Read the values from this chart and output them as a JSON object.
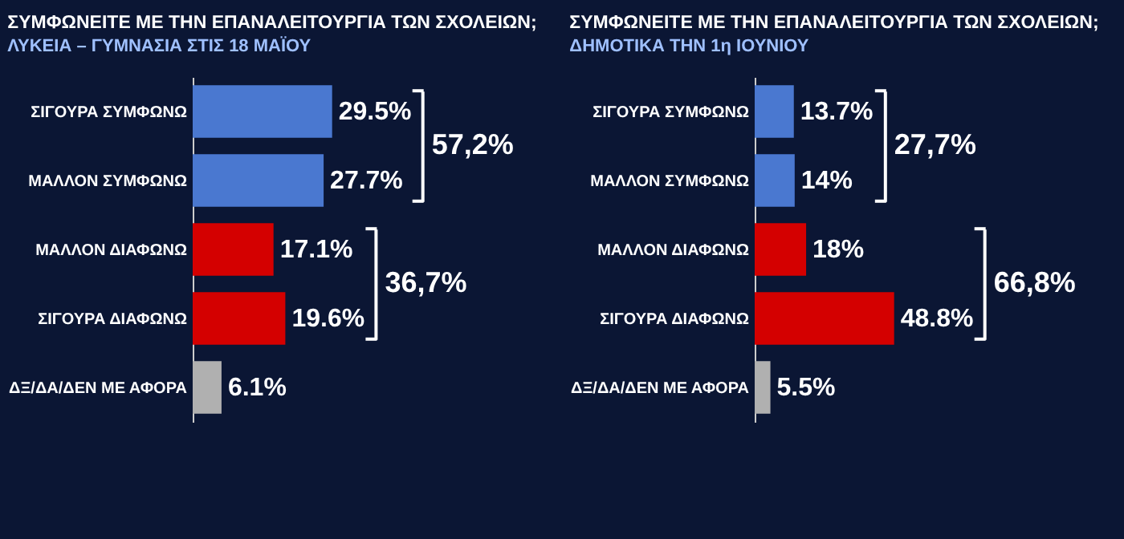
{
  "chart_data": [
    {
      "type": "bar",
      "orientation": "horizontal",
      "title": "ΣΥΜΦΩΝΕΙΤΕ ΜΕ ΤΗΝ ΕΠΑΝΑΛΕΙΤΟΥΡΓΙΑ ΤΩΝ ΣΧΟΛΕΙΩΝ;",
      "subtitle": "ΛΥΚΕΙΑ – ΓΥΜΝΑΣΙΑ ΣΤΙΣ 18 ΜΑΪΟΥ",
      "tick_labels": "y",
      "categories": [
        "ΣΙΓΟΥΡΑ ΣΥΜΦΩΝΩ",
        "ΜΑΛΛΟΝ ΣΥΜΦΩΝΩ",
        "ΜΑΛΛΟΝ ΔΙΑΦΩΝΩ",
        "ΣΙΓΟΥΡΑ ΔΙΑΦΩΝΩ",
        "ΔΞ/ΔΑ/ΔΕΝ ΜΕ ΑΦΟΡΑ"
      ],
      "values": [
        29.5,
        27.7,
        17.1,
        19.6,
        6.1
      ],
      "colors": [
        "#4a78d0",
        "#4a78d0",
        "#d40000",
        "#d40000",
        "#b0b0b0"
      ],
      "value_labels": [
        "29.5%",
        "27.7%",
        "17.1%",
        "19.6%",
        "6.1%"
      ],
      "annotations": [
        "57,2%",
        "36,7%"
      ]
    },
    {
      "type": "bar",
      "orientation": "horizontal",
      "title": "ΣΥΜΦΩΝΕΙΤΕ ΜΕ ΤΗΝ ΕΠΑΝΑΛΕΙΤΟΥΡΓΙΑ ΤΩΝ ΣΧΟΛΕΙΩΝ;",
      "subtitle": "ΔΗΜΟΤΙΚΑ ΤΗΝ 1η ΙΟΥΝΙΟΥ",
      "tick_labels": "y",
      "categories": [
        "ΣΙΓΟΥΡΑ ΣΥΜΦΩΝΩ",
        "ΜΑΛΛΟΝ ΣΥΜΦΩΝΩ",
        "ΜΑΛΛΟΝ ΔΙΑΦΩΝΩ",
        "ΣΙΓΟΥΡΑ ΔΙΑΦΩΝΩ",
        "ΔΞ/ΔΑ/ΔΕΝ ΜΕ ΑΦΟΡΑ"
      ],
      "values": [
        13.7,
        14,
        18,
        48.8,
        5.5
      ],
      "colors": [
        "#4a78d0",
        "#4a78d0",
        "#d40000",
        "#d40000",
        "#b0b0b0"
      ],
      "value_labels": [
        "13.7%",
        "14%",
        "18%",
        "48.8%",
        "5.5%"
      ],
      "annotations": [
        "27,7%",
        "66,8%"
      ]
    }
  ]
}
